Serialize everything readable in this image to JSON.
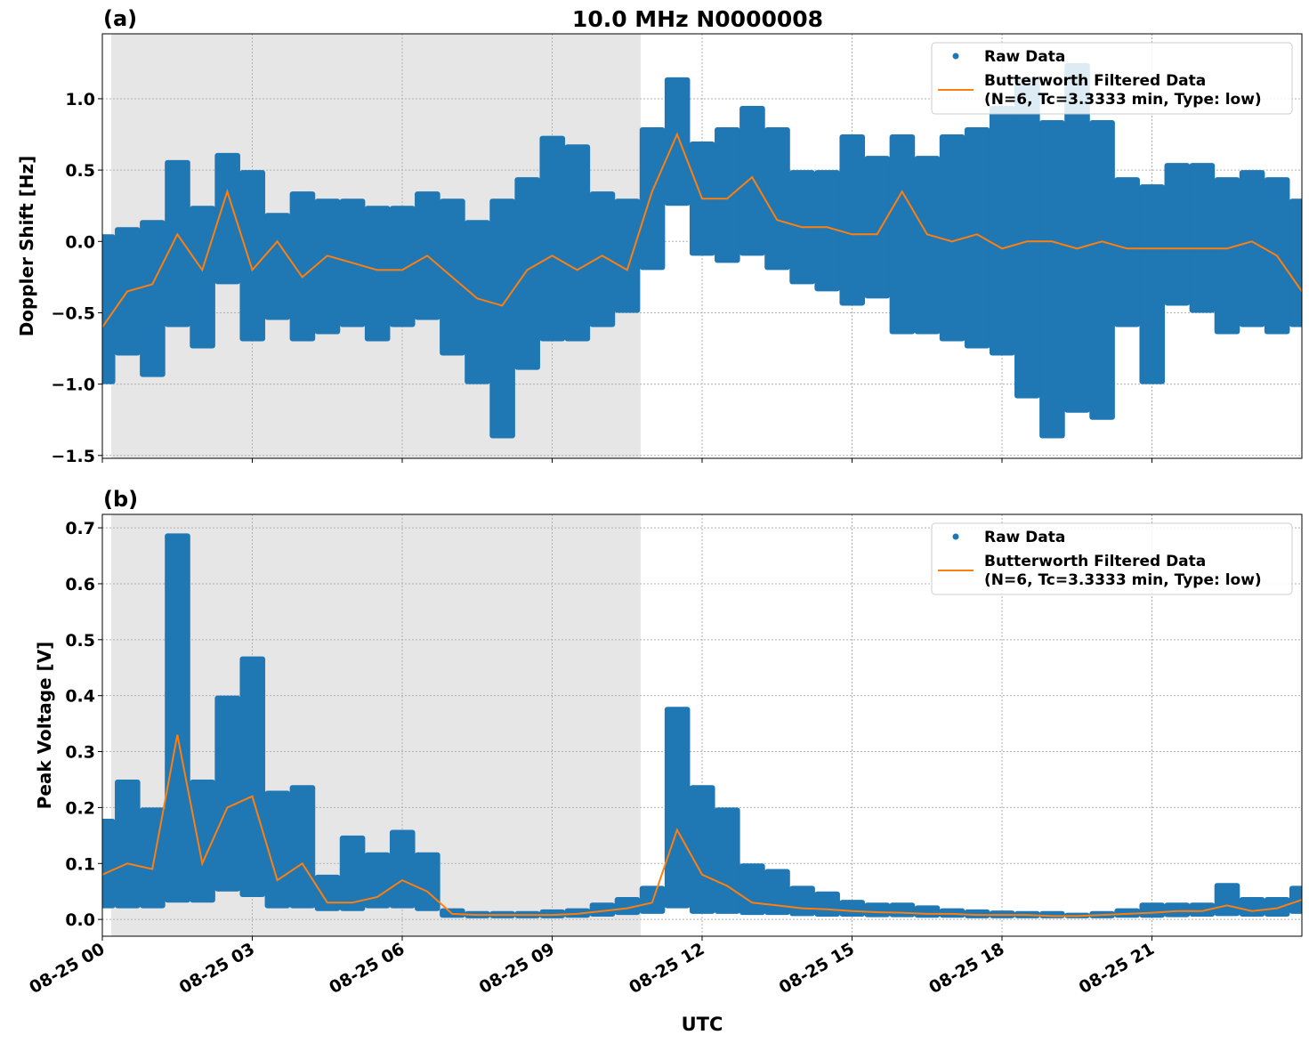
{
  "title": "10.0 MHz N0000008",
  "xlabel": "UTC",
  "colors": {
    "raw": "#1f77b4",
    "filtered": "#ff7f0e",
    "shade": "#e6e6e6",
    "grid": "#b0b0b0"
  },
  "legend": {
    "raw": "Raw Data",
    "filtered_line1": "Butterworth Filtered Data",
    "filtered_line2": "(N=6, Tc=3.3333 min, Type: low)",
    "placement": "top-right"
  },
  "chart_data": [
    {
      "panel_label": "(a)",
      "type": "scatter+line",
      "ylabel": "Doppler Shift [Hz]",
      "xlim_hours": [
        0,
        24
      ],
      "ylim": [
        -1.52,
        1.455
      ],
      "yticks": [
        -1.5,
        -1.0,
        -0.5,
        0.0,
        0.5,
        1.0
      ],
      "ytick_labels": [
        "−1.5",
        "−1.0",
        "−0.5",
        "0.0",
        "0.5",
        "1.0"
      ],
      "xtick_labels": [
        "08-25 00",
        "08-25 03",
        "08-25 06",
        "08-25 09",
        "08-25 12",
        "08-25 15",
        "08-25 18",
        "08-25 21"
      ],
      "xtick_hours": [
        0,
        3,
        6,
        9,
        12,
        15,
        18,
        21
      ],
      "grid": true,
      "shaded_span_hours": [
        0.18,
        10.77
      ],
      "x_hours": [
        0,
        0.5,
        1,
        1.5,
        2,
        2.5,
        3,
        3.5,
        4,
        4.5,
        5,
        5.5,
        6,
        6.5,
        7,
        7.5,
        8,
        8.5,
        9,
        9.5,
        10,
        10.5,
        11,
        11.5,
        12,
        12.5,
        13,
        13.5,
        14,
        14.5,
        15,
        15.5,
        16,
        16.5,
        17,
        17.5,
        18,
        18.5,
        19,
        19.5,
        20,
        20.5,
        21,
        21.5,
        22,
        22.5,
        23,
        23.5,
        24
      ],
      "filtered": [
        -0.6,
        -0.35,
        -0.3,
        0.05,
        -0.2,
        0.35,
        -0.2,
        0.0,
        -0.25,
        -0.1,
        -0.15,
        -0.2,
        -0.2,
        -0.1,
        -0.25,
        -0.4,
        -0.45,
        -0.2,
        -0.1,
        -0.2,
        -0.1,
        -0.2,
        0.35,
        0.75,
        0.3,
        0.3,
        0.45,
        0.15,
        0.1,
        0.1,
        0.05,
        0.05,
        0.35,
        0.05,
        0.0,
        0.05,
        -0.05,
        0.0,
        0.0,
        -0.05,
        0.0,
        -0.05,
        -0.05,
        -0.05,
        -0.05,
        -0.05,
        0.0,
        -0.1,
        -0.35
      ],
      "raw_low": [
        -1.0,
        -0.8,
        -0.95,
        -0.6,
        -0.75,
        -0.3,
        -0.7,
        -0.55,
        -0.7,
        -0.65,
        -0.6,
        -0.7,
        -0.6,
        -0.55,
        -0.8,
        -1.0,
        -1.38,
        -0.9,
        -0.7,
        -0.7,
        -0.6,
        -0.5,
        -0.2,
        0.25,
        -0.1,
        -0.15,
        -0.1,
        -0.2,
        -0.3,
        -0.35,
        -0.45,
        -0.4,
        -0.65,
        -0.65,
        -0.7,
        -0.75,
        -0.8,
        -1.1,
        -1.38,
        -1.2,
        -1.25,
        -0.6,
        -1.0,
        -0.45,
        -0.5,
        -0.65,
        -0.6,
        -0.65,
        -0.6
      ],
      "raw_high": [
        0.05,
        0.1,
        0.15,
        0.57,
        0.25,
        0.62,
        0.5,
        0.2,
        0.35,
        0.3,
        0.3,
        0.25,
        0.25,
        0.35,
        0.3,
        0.15,
        0.3,
        0.45,
        0.74,
        0.68,
        0.35,
        0.3,
        0.8,
        1.15,
        0.7,
        0.8,
        0.95,
        0.8,
        0.5,
        0.5,
        0.75,
        0.6,
        0.75,
        0.6,
        0.75,
        0.8,
        0.95,
        1.15,
        0.85,
        1.25,
        0.85,
        0.45,
        0.4,
        0.55,
        0.55,
        0.45,
        0.5,
        0.45,
        0.3
      ]
    },
    {
      "panel_label": "(b)",
      "type": "scatter+line",
      "ylabel": "Peak Voltage [V]",
      "xlim_hours": [
        0,
        24
      ],
      "ylim": [
        -0.03,
        0.724
      ],
      "yticks": [
        0.0,
        0.1,
        0.2,
        0.3,
        0.4,
        0.5,
        0.6,
        0.7
      ],
      "ytick_labels": [
        "0.0",
        "0.1",
        "0.2",
        "0.3",
        "0.4",
        "0.5",
        "0.6",
        "0.7"
      ],
      "xtick_labels": [
        "08-25 00",
        "08-25 03",
        "08-25 06",
        "08-25 09",
        "08-25 12",
        "08-25 15",
        "08-25 18",
        "08-25 21"
      ],
      "xtick_hours": [
        0,
        3,
        6,
        9,
        12,
        15,
        18,
        21
      ],
      "grid": true,
      "shaded_span_hours": [
        0.18,
        10.77
      ],
      "x_hours": [
        0,
        0.5,
        1,
        1.5,
        2,
        2.5,
        3,
        3.5,
        4,
        4.5,
        5,
        5.5,
        6,
        6.5,
        7,
        7.5,
        8,
        8.5,
        9,
        9.5,
        10,
        10.5,
        11,
        11.5,
        12,
        12.5,
        13,
        13.5,
        14,
        14.5,
        15,
        15.5,
        16,
        16.5,
        17,
        17.5,
        18,
        18.5,
        19,
        19.5,
        20,
        20.5,
        21,
        21.5,
        22,
        22.5,
        23,
        23.5,
        24
      ],
      "filtered": [
        0.08,
        0.1,
        0.09,
        0.33,
        0.1,
        0.2,
        0.22,
        0.07,
        0.1,
        0.03,
        0.03,
        0.04,
        0.07,
        0.05,
        0.01,
        0.008,
        0.008,
        0.008,
        0.008,
        0.01,
        0.015,
        0.02,
        0.03,
        0.16,
        0.08,
        0.06,
        0.03,
        0.025,
        0.02,
        0.018,
        0.015,
        0.013,
        0.012,
        0.01,
        0.01,
        0.008,
        0.008,
        0.008,
        0.006,
        0.006,
        0.008,
        0.01,
        0.012,
        0.015,
        0.015,
        0.025,
        0.015,
        0.02,
        0.035
      ],
      "raw_low": [
        0.02,
        0.02,
        0.02,
        0.03,
        0.03,
        0.05,
        0.04,
        0.02,
        0.02,
        0.015,
        0.015,
        0.02,
        0.02,
        0.015,
        0.003,
        0.002,
        0.002,
        0.002,
        0.002,
        0.003,
        0.005,
        0.008,
        0.01,
        0.02,
        0.01,
        0.01,
        0.008,
        0.008,
        0.006,
        0.005,
        0.005,
        0.004,
        0.004,
        0.003,
        0.003,
        0.002,
        0.002,
        0.002,
        0.002,
        0.002,
        0.002,
        0.003,
        0.003,
        0.004,
        0.005,
        0.006,
        0.005,
        0.005,
        0.01
      ],
      "raw_high": [
        0.18,
        0.25,
        0.2,
        0.69,
        0.25,
        0.4,
        0.47,
        0.23,
        0.24,
        0.08,
        0.15,
        0.12,
        0.16,
        0.12,
        0.02,
        0.015,
        0.015,
        0.015,
        0.018,
        0.02,
        0.03,
        0.04,
        0.06,
        0.38,
        0.24,
        0.2,
        0.1,
        0.09,
        0.06,
        0.05,
        0.035,
        0.03,
        0.03,
        0.025,
        0.02,
        0.018,
        0.016,
        0.015,
        0.015,
        0.012,
        0.015,
        0.02,
        0.03,
        0.03,
        0.03,
        0.065,
        0.04,
        0.04,
        0.06
      ]
    }
  ]
}
